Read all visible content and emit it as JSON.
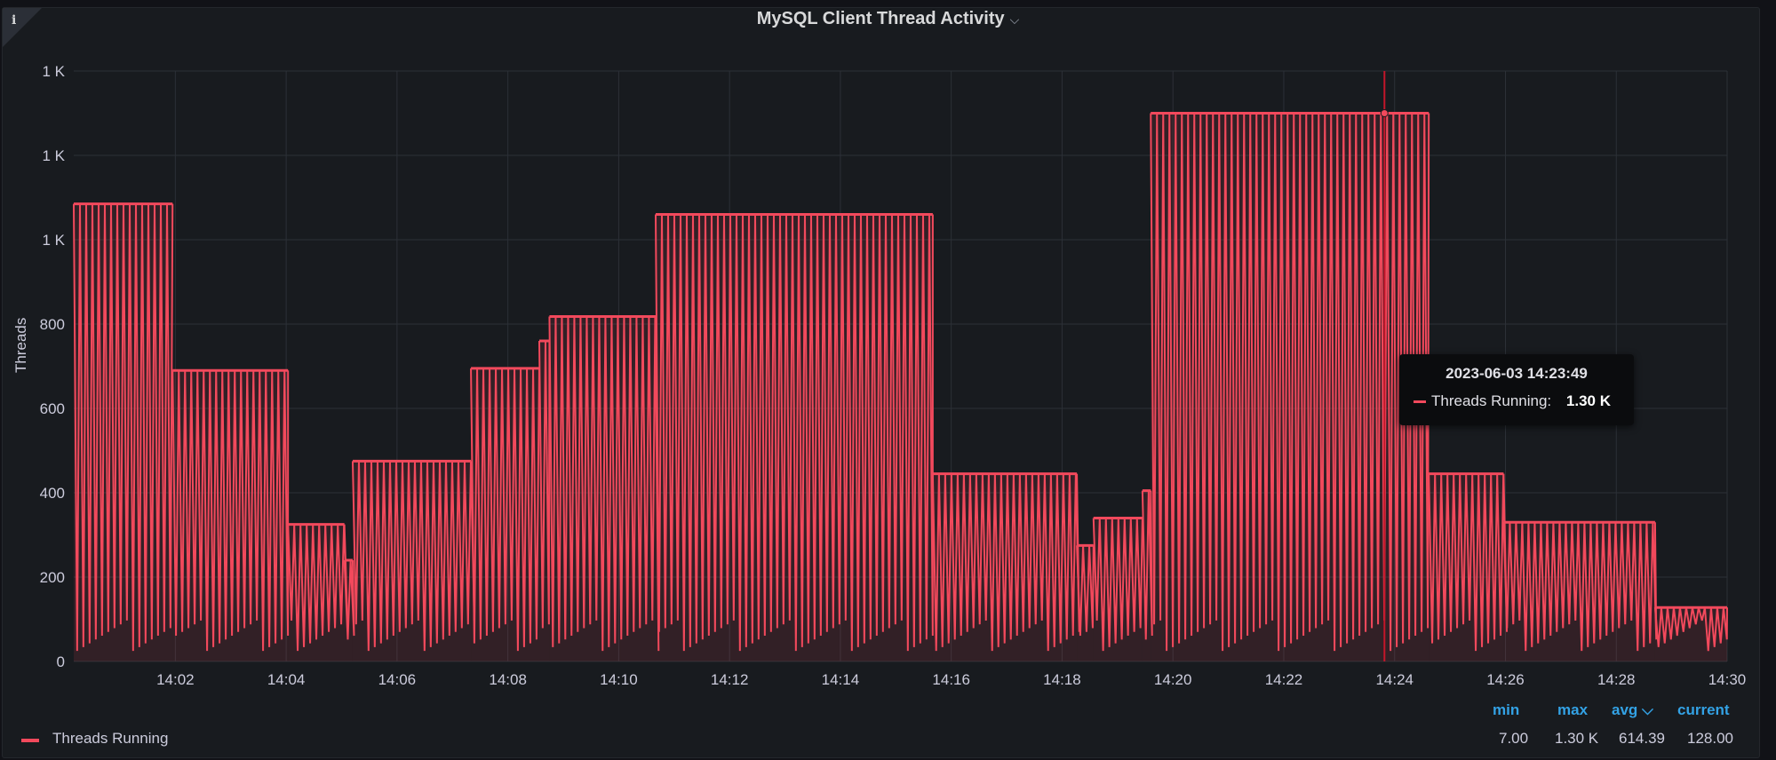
{
  "panel": {
    "title": "MySQL Client Thread Activity",
    "title_chevron": "⌵",
    "info_icon": "i"
  },
  "chart_data": {
    "type": "bar",
    "title": "MySQL Client Thread Activity",
    "ylabel": "Threads",
    "xlabel": "",
    "ylim": [
      0,
      1400
    ],
    "xlim": [
      "14:00:10",
      "14:30:00"
    ],
    "y_ticks": [
      {
        "value": 0,
        "label": "0"
      },
      {
        "value": 200,
        "label": "200"
      },
      {
        "value": 400,
        "label": "400"
      },
      {
        "value": 600,
        "label": "600"
      },
      {
        "value": 800,
        "label": "800"
      },
      {
        "value": 1000,
        "label": "1 K"
      },
      {
        "value": 1200,
        "label": "1 K"
      },
      {
        "value": 1400,
        "label": "1 K"
      }
    ],
    "x_ticks": [
      "14:02",
      "14:04",
      "14:06",
      "14:08",
      "14:10",
      "14:12",
      "14:14",
      "14:16",
      "14:18",
      "14:20",
      "14:22",
      "14:24",
      "14:26",
      "14:28",
      "14:30"
    ],
    "grid": true,
    "series": [
      {
        "name": "Threads Running",
        "color": "#f2495c",
        "segments": [
          {
            "start": "14:00:10",
            "end": "14:01:57",
            "peak": 1085
          },
          {
            "start": "14:01:57",
            "end": "14:04:02",
            "peak": 690
          },
          {
            "start": "14:04:02",
            "end": "14:05:03",
            "peak": 325
          },
          {
            "start": "14:05:03",
            "end": "14:05:12",
            "peak": 240
          },
          {
            "start": "14:05:12",
            "end": "14:07:20",
            "peak": 475
          },
          {
            "start": "14:07:20",
            "end": "14:08:34",
            "peak": 695
          },
          {
            "start": "14:08:34",
            "end": "14:08:45",
            "peak": 760
          },
          {
            "start": "14:08:45",
            "end": "14:10:40",
            "peak": 818
          },
          {
            "start": "14:10:40",
            "end": "14:15:40",
            "peak": 1060
          },
          {
            "start": "14:15:40",
            "end": "14:18:16",
            "peak": 445
          },
          {
            "start": "14:18:16",
            "end": "14:18:34",
            "peak": 275
          },
          {
            "start": "14:18:34",
            "end": "14:19:27",
            "peak": 340
          },
          {
            "start": "14:19:27",
            "end": "14:19:36",
            "peak": 405
          },
          {
            "start": "14:19:36",
            "end": "14:24:37",
            "peak": 1300
          },
          {
            "start": "14:24:37",
            "end": "14:25:58",
            "peak": 445
          },
          {
            "start": "14:25:58",
            "end": "14:28:42",
            "peak": 330
          },
          {
            "start": "14:28:42",
            "end": "14:30:00",
            "peak": 128
          }
        ]
      }
    ],
    "hover_time": "14:23:49",
    "tooltip": {
      "time": "2023-06-03 14:23:49",
      "series_label": "Threads Running:",
      "value": "1.30 K"
    },
    "legend": {
      "placement": "bottom",
      "label": "Threads Running",
      "stats_headers": {
        "min": "min",
        "max": "max",
        "avg": "avg ⌵",
        "current": "current"
      },
      "stats_values": {
        "min": "7.00",
        "max": "1.30 K",
        "avg": "614.39",
        "current": "128.00"
      }
    }
  }
}
